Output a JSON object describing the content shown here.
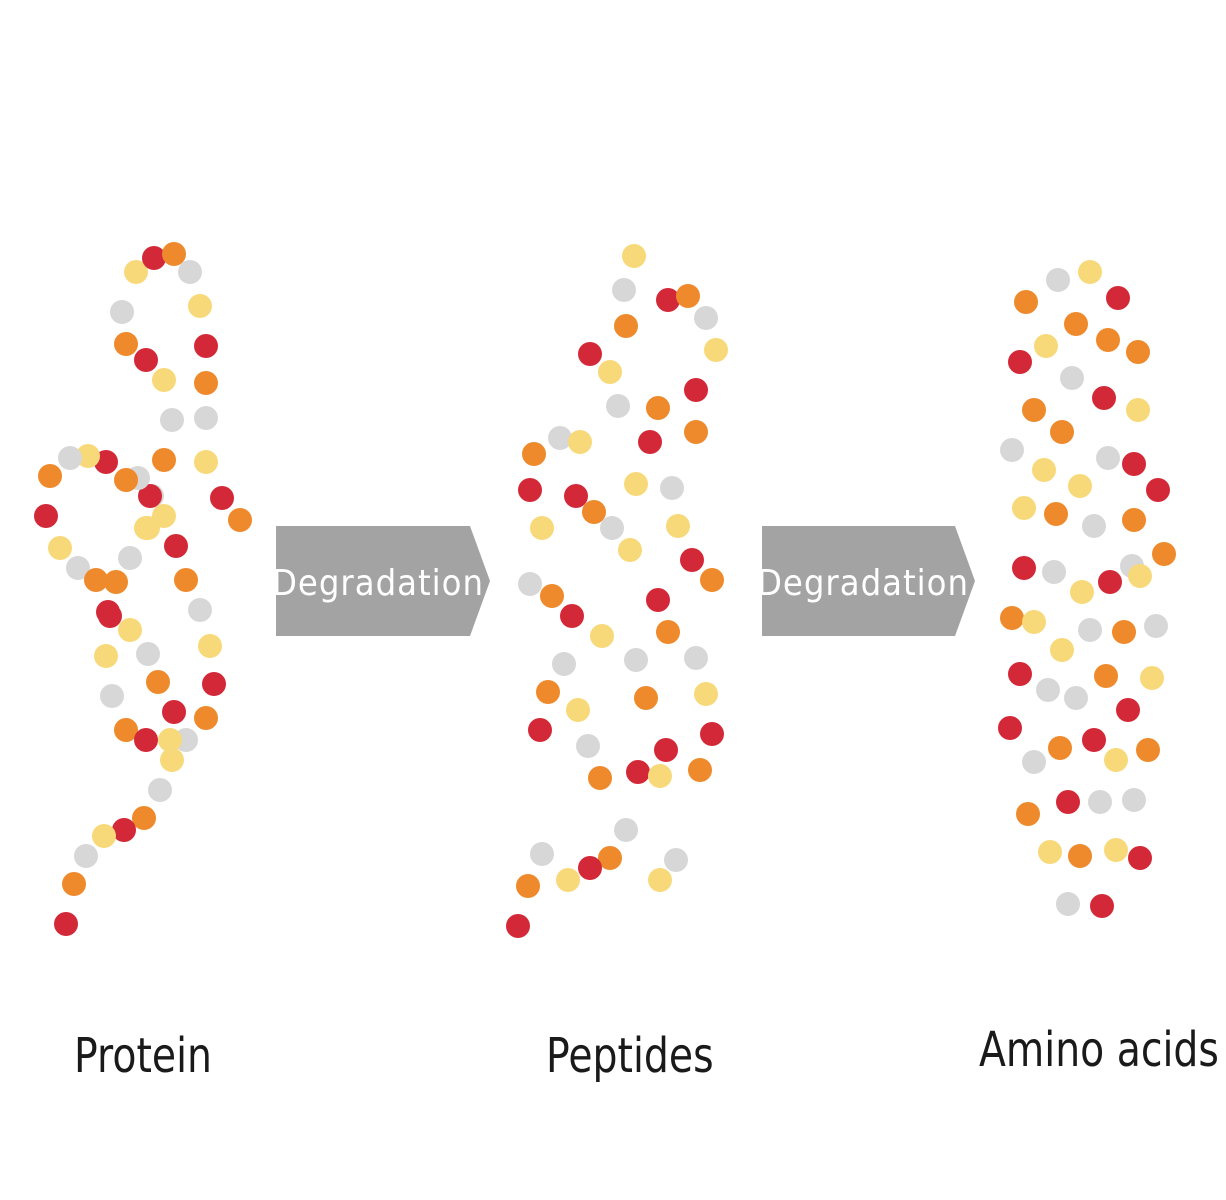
{
  "stages": [
    {
      "label": "Protein"
    },
    {
      "label": "Peptides"
    },
    {
      "label": "Amino acids"
    }
  ],
  "arrows": [
    {
      "label": "Degradation"
    },
    {
      "label": "Degradation"
    }
  ],
  "colors": {
    "red": "#d32838",
    "orange": "#ee8a2c",
    "yellow": "#f8d97a",
    "gray": "#d7d7d7",
    "arrow_fill": "#a3a3a3"
  }
}
